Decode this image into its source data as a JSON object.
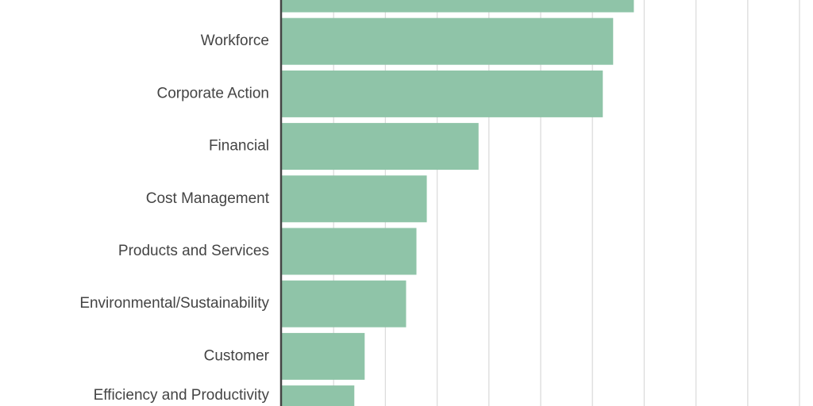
{
  "chart_data": {
    "type": "bar",
    "orientation": "horizontal",
    "categories": [
      "",
      "Workforce",
      "Corporate Action",
      "Financial",
      "Cost Management",
      "Products and Services",
      "Environmental/Sustainability",
      "Customer",
      "Efficiency and Productivity"
    ],
    "values": [
      34,
      32,
      31,
      19,
      14,
      13,
      12,
      8,
      7
    ],
    "xlim": [
      0,
      50
    ],
    "x_gridline_step": 5,
    "grid": true,
    "bar_color": "#8fc4a8",
    "title": "",
    "xlabel": "",
    "ylabel": ""
  }
}
